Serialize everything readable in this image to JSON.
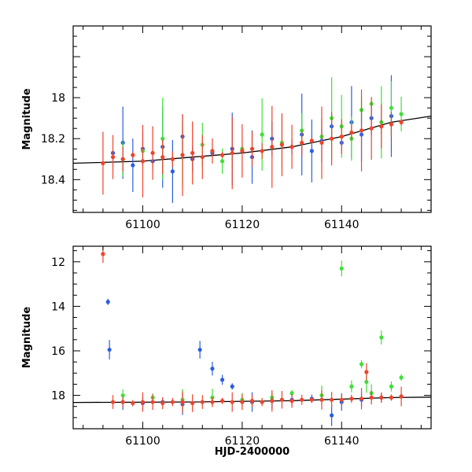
{
  "chart_data": [
    {
      "type": "scatter",
      "panel": "top",
      "ylabel": "Magnitude",
      "xlabel": "",
      "xlim": [
        61086,
        61158
      ],
      "ylim": [
        18.56,
        17.65
      ],
      "y_inverted": true,
      "xticks": [
        "61100",
        "61120",
        "61140"
      ],
      "yticks": [
        "18",
        "18.2",
        "18.4"
      ],
      "series": [
        {
          "color": "#2b5fe0",
          "x": [
            61094,
            61096,
            61098,
            61100,
            61102,
            61104,
            61106,
            61108,
            61110,
            61114,
            61118,
            61122,
            61126,
            61130,
            61132,
            61134,
            61136,
            61138,
            61140,
            61142,
            61144,
            61146,
            61148,
            61150
          ],
          "y": [
            18.27,
            18.22,
            18.33,
            18.25,
            18.31,
            18.24,
            18.36,
            18.19,
            18.3,
            18.27,
            18.25,
            18.29,
            18.2,
            18.24,
            18.18,
            18.26,
            18.21,
            18.14,
            18.22,
            18.12,
            18.18,
            18.1,
            18.14,
            18.09
          ]
        },
        {
          "color": "#3fe03a",
          "x": [
            61096,
            61100,
            61104,
            61108,
            61112,
            61116,
            61120,
            61124,
            61128,
            61132,
            61136,
            61138,
            61140,
            61142,
            61144,
            61146,
            61148,
            61150,
            61152
          ],
          "y": [
            18.3,
            18.26,
            18.2,
            18.28,
            18.23,
            18.31,
            18.25,
            18.18,
            18.22,
            18.16,
            18.19,
            18.1,
            18.14,
            18.2,
            18.06,
            18.03,
            18.12,
            18.05,
            18.08
          ]
        },
        {
          "color": "#f0432b",
          "x": [
            61092,
            61094,
            61096,
            61098,
            61100,
            61102,
            61104,
            61106,
            61108,
            61110,
            61112,
            61114,
            61116,
            61118,
            61120,
            61122,
            61124,
            61126,
            61128,
            61130,
            61132,
            61134,
            61136,
            61138,
            61140,
            61142,
            61144,
            61146,
            61148,
            61150,
            61152
          ],
          "y": [
            18.32,
            18.29,
            18.3,
            18.28,
            18.31,
            18.27,
            18.29,
            18.3,
            18.28,
            18.27,
            18.29,
            18.26,
            18.28,
            18.27,
            18.26,
            18.25,
            18.26,
            18.24,
            18.23,
            18.24,
            18.22,
            18.21,
            18.22,
            18.2,
            18.19,
            18.17,
            18.16,
            18.15,
            18.14,
            18.13,
            18.12
          ]
        }
      ],
      "model_curve": {
        "color": "#000000",
        "x": [
          61086,
          61100,
          61110,
          61120,
          61130,
          61140,
          61150,
          61158
        ],
        "y": [
          18.32,
          18.31,
          18.29,
          18.27,
          18.24,
          18.19,
          18.12,
          18.09
        ]
      }
    },
    {
      "type": "scatter",
      "panel": "bottom",
      "ylabel": "Magnitude",
      "xlabel": "HJD-2400000",
      "xlim": [
        61086,
        61158
      ],
      "ylim": [
        19.5,
        11.3
      ],
      "y_inverted": true,
      "xticks": [
        "61100",
        "61120",
        "61140"
      ],
      "yticks": [
        "12",
        "14",
        "16",
        "18"
      ],
      "series": [
        {
          "color": "#2b5fe0",
          "x": [
            61093,
            61093.3,
            61096,
            61100,
            61104,
            61108,
            61111.5,
            61114,
            61116,
            61118,
            61122,
            61126,
            61130,
            61134,
            61138,
            61140,
            61144,
            61148,
            61152
          ],
          "y": [
            13.8,
            15.95,
            18.3,
            18.35,
            18.3,
            18.4,
            15.95,
            16.8,
            17.3,
            17.6,
            18.3,
            18.25,
            18.2,
            18.15,
            18.9,
            18.3,
            18.2,
            18.1,
            18.05
          ]
        },
        {
          "color": "#3fe03a",
          "x": [
            61096,
            61102,
            61108,
            61114,
            61120,
            61126,
            61130,
            61136,
            61140,
            61142,
            61144,
            61145,
            61146,
            61148,
            61150,
            61152
          ],
          "y": [
            18.0,
            18.1,
            18.2,
            18.1,
            18.2,
            18.1,
            17.9,
            18.0,
            12.3,
            17.6,
            16.6,
            17.4,
            17.9,
            15.4,
            17.6,
            17.2
          ]
        },
        {
          "color": "#f0432b",
          "x": [
            61092,
            61094,
            61096,
            61098,
            61100,
            61102,
            61104,
            61106,
            61108,
            61110,
            61112,
            61114,
            61116,
            61118,
            61120,
            61122,
            61124,
            61126,
            61128,
            61130,
            61132,
            61134,
            61136,
            61138,
            61140,
            61142,
            61144,
            61145,
            61146,
            61148,
            61150,
            61152
          ],
          "y": [
            11.65,
            18.3,
            18.3,
            18.35,
            18.3,
            18.3,
            18.35,
            18.3,
            18.3,
            18.35,
            18.3,
            18.3,
            18.25,
            18.3,
            18.3,
            18.25,
            18.3,
            18.25,
            18.2,
            18.25,
            18.2,
            18.2,
            18.2,
            18.2,
            18.2,
            18.15,
            18.15,
            16.95,
            18.1,
            18.1,
            18.1,
            18.05
          ]
        }
      ],
      "model_curve": {
        "color": "#000000",
        "x": [
          61086,
          61110,
          61130,
          61150,
          61158
        ],
        "y": [
          18.32,
          18.3,
          18.24,
          18.1,
          18.08
        ]
      }
    }
  ]
}
